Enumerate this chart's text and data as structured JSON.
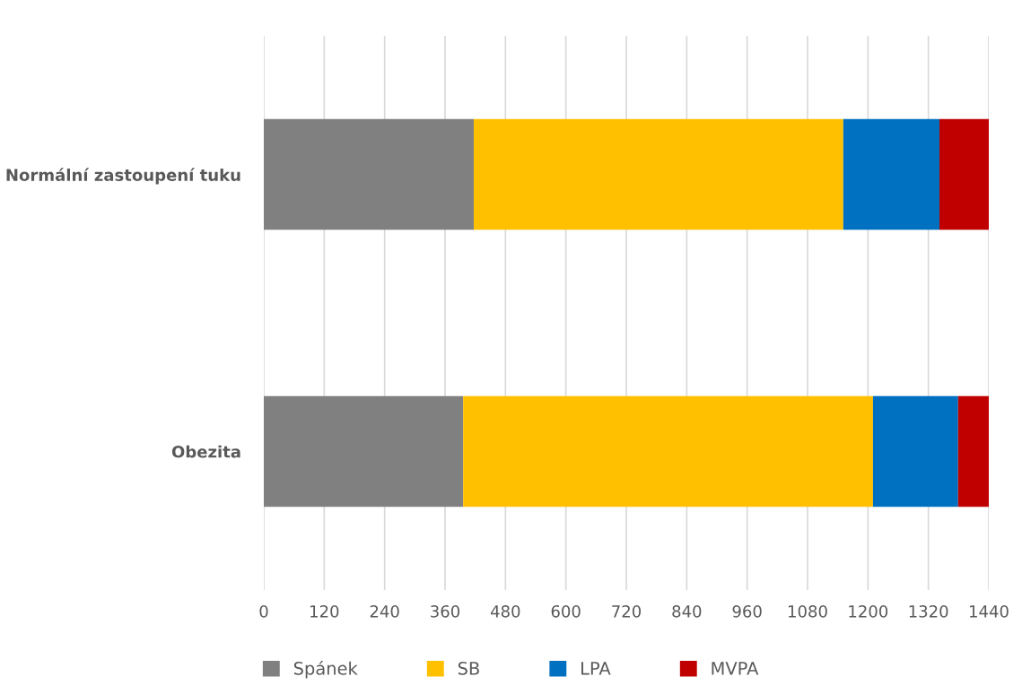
{
  "chart_data": {
    "type": "bar",
    "orientation": "horizontal",
    "stacked": true,
    "categories": [
      "Normální zastoupení tuku",
      "Obezita"
    ],
    "series": [
      {
        "name": "Spánek",
        "color": "#808080",
        "values": [
          417,
          396
        ]
      },
      {
        "name": "SB",
        "color": "#ffc000",
        "values": [
          734,
          814
        ]
      },
      {
        "name": "LPA",
        "color": "#0070c0",
        "values": [
          191,
          169
        ]
      },
      {
        "name": "MVPA",
        "color": "#c00000",
        "values": [
          98,
          61
        ]
      }
    ],
    "xlim": [
      0,
      1440
    ],
    "xticks": [
      0,
      120,
      240,
      360,
      480,
      600,
      720,
      840,
      960,
      1080,
      1200,
      1320,
      1440
    ],
    "grid": "x",
    "legend": "bottom"
  }
}
